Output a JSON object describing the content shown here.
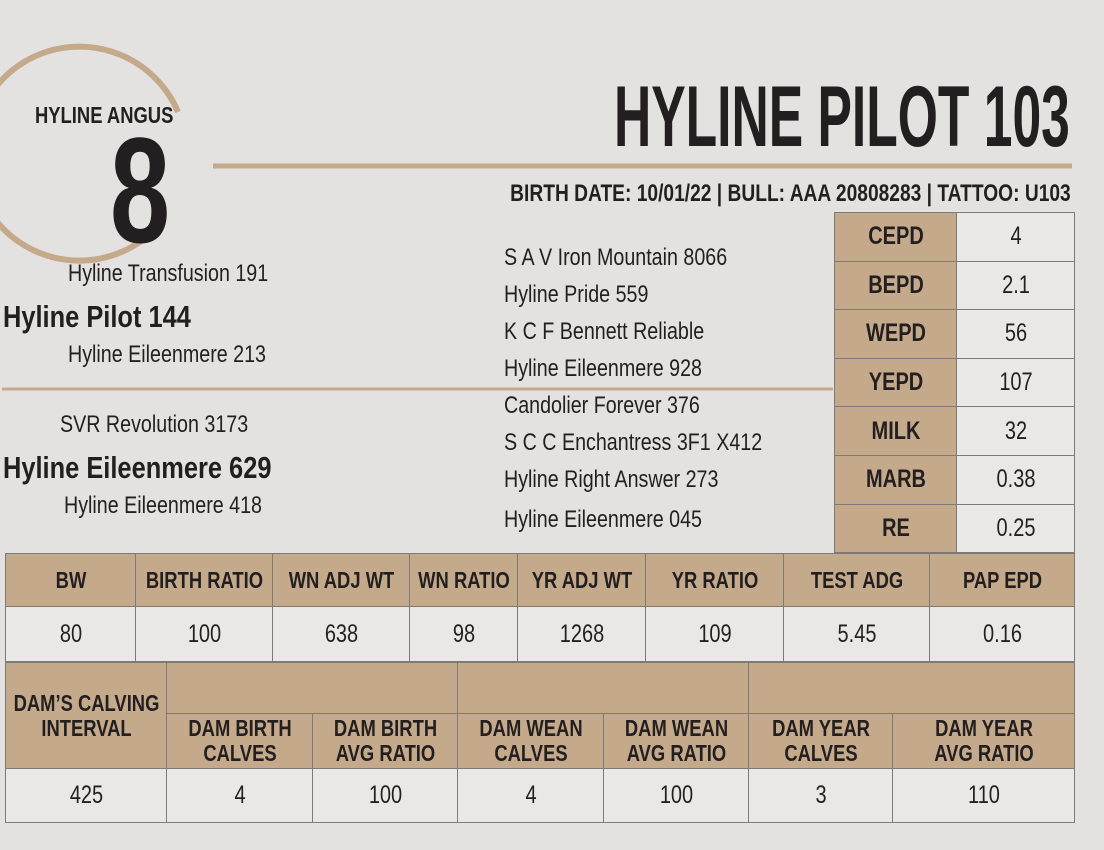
{
  "header": {
    "brand": "HYLINE ANGUS",
    "lot": "8",
    "title": "HYLINE PILOT 103",
    "info": "BIRTH DATE: 10/01/22 | BULL:  AAA 20808283 | TATTOO: U103"
  },
  "pedigree": {
    "sire_sire": "Hyline Transfusion 191",
    "sire": "Hyline Pilot 144",
    "sire_dam": "Hyline Eileenmere 213",
    "dam_sire": "SVR Revolution 3173",
    "dam": "Hyline Eileenmere 629",
    "dam_dam": "Hyline Eileenmere 418",
    "great_grandparents": [
      "S A V Iron Mountain 8066",
      "Hyline Pride 559",
      "K C F Bennett Reliable",
      "Hyline Eileenmere 928",
      "Candolier Forever 376",
      "S C C Enchantress 3F1 X412",
      "Hyline Right Answer 273",
      "Hyline Eileenmere 045"
    ]
  },
  "epd_table": {
    "rows": [
      [
        "CEPD",
        "4"
      ],
      [
        "BEPD",
        "2.1"
      ],
      [
        "WEPD",
        "56"
      ],
      [
        "YEPD",
        "107"
      ],
      [
        "MILK",
        "32"
      ],
      [
        "MARB",
        "0.38"
      ],
      [
        "RE",
        "0.25"
      ]
    ]
  },
  "performance_table": {
    "headers": [
      "BW",
      "BIRTH RATIO",
      "WN ADJ WT",
      "WN RATIO",
      "YR ADJ WT",
      "YR RATIO",
      "TEST ADG",
      "PAP EPD"
    ],
    "values": [
      "80",
      "100",
      "638",
      "98",
      "1268",
      "109",
      "5.45",
      "0.16"
    ]
  },
  "dam_table": {
    "headers": [
      "DAM’S CALVING\nINTERVAL",
      "DAM BIRTH\nCALVES",
      "DAM BIRTH\nAVG RATIO",
      "DAM WEAN\nCALVES",
      "DAM WEAN\nAVG RATIO",
      "DAM YEAR\nCALVES",
      "DAM YEAR\nAVG RATIO"
    ],
    "values": [
      "425",
      "4",
      "100",
      "4",
      "100",
      "3",
      "110"
    ]
  }
}
